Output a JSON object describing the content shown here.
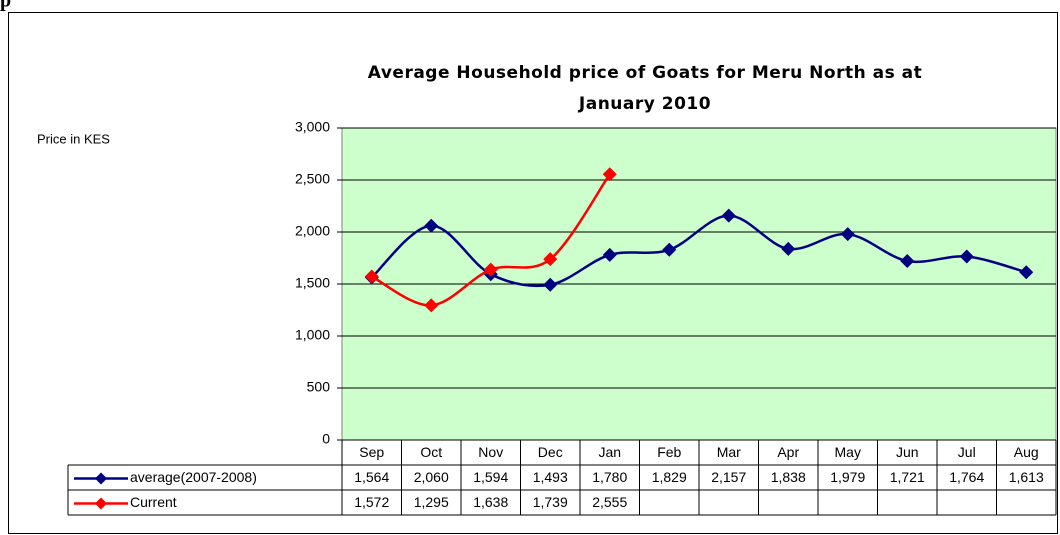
{
  "heading": "p",
  "chart_data": {
    "type": "line",
    "title": [
      "Average Household price of Goats for Meru North as at",
      "January 2010"
    ],
    "y_axis_label": "Price in KES",
    "categories": [
      "Sep",
      "Oct",
      "Nov",
      "Dec",
      "Jan",
      "Feb",
      "Mar",
      "Apr",
      "May",
      "Jun",
      "Jul",
      "Aug"
    ],
    "series": [
      {
        "name": "average(2007-2008)",
        "color": "#000080",
        "values": [
          1564,
          2060,
          1594,
          1493,
          1780,
          1829,
          2157,
          1838,
          1979,
          1721,
          1764,
          1613
        ],
        "value_labels": [
          "1,564",
          "2,060",
          "1,594",
          "1,493",
          "1,780",
          "1,829",
          "2,157",
          "1,838",
          "1,979",
          "1,721",
          "1,764",
          "1,613"
        ]
      },
      {
        "name": "Current",
        "color": "#ff0000",
        "values": [
          1572,
          1295,
          1638,
          1739,
          2555,
          null,
          null,
          null,
          null,
          null,
          null,
          null
        ],
        "value_labels": [
          "1,572",
          "1,295",
          "1,638",
          "1,739",
          "2,555",
          null,
          null,
          null,
          null,
          null,
          null,
          null
        ]
      }
    ],
    "ylim": [
      0,
      3000
    ],
    "yticks": [
      0,
      500,
      {
        "value": 1000,
        "label": "1,000"
      },
      {
        "value": 1500,
        "label": "1,500"
      },
      {
        "value": 2000,
        "label": "2,000"
      },
      {
        "value": 2500,
        "label": "2,500"
      },
      {
        "value": 3000,
        "label": "3,000"
      }
    ],
    "grid": true,
    "plot_background": "#ccffcc"
  }
}
